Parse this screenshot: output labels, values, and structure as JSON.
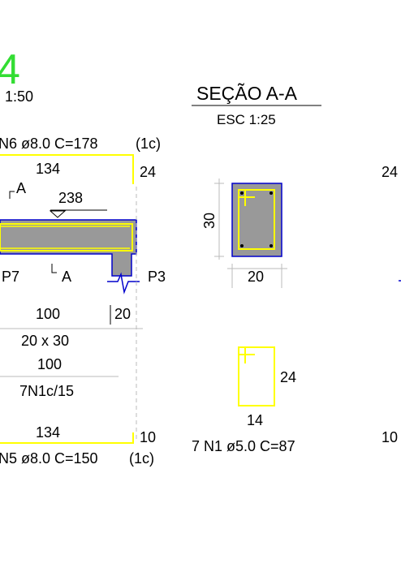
{
  "beam": {
    "label": "4",
    "scale": "1:50",
    "top_bar_callout": "N6 ø8.0 C=178",
    "top_bar_layer": "(1c)",
    "top_bar_length": "134",
    "top_bar_hook": "24",
    "section_marker_top": "A",
    "section_marker_bottom": "A",
    "level_mark": "238",
    "left_support": "P7",
    "right_support": "P3",
    "span_length": "100",
    "support_width": "20",
    "beam_section": "20 x 30",
    "stirrup_zone_length": "100",
    "stirrup_spacing": "7N1c/15",
    "bottom_bar_length": "134",
    "bottom_bar_hook": "10",
    "bottom_bar_callout": "N5 ø8.0 C=150",
    "bottom_bar_layer": "(1c)",
    "colors": {
      "rebar": "#ffff00",
      "label_green": "#33dd33",
      "concrete_fill": "#999999",
      "outline": "#0000cc"
    }
  },
  "section": {
    "title": "SEÇÃO A-A",
    "scale": "ESC 1:25",
    "height": "30",
    "width": "20"
  },
  "stirrup": {
    "hook": "24",
    "width": "14",
    "callout": "7 N1 ø5.0 C=87"
  },
  "next_detail": {
    "top_hook": "24",
    "bottom_hook": "10"
  }
}
